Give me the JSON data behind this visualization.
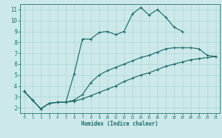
{
  "xlabel": "Humidex (Indice chaleur)",
  "xlim": [
    -0.5,
    23.5
  ],
  "ylim": [
    1.5,
    11.5
  ],
  "xticks": [
    0,
    1,
    2,
    3,
    4,
    5,
    6,
    7,
    8,
    9,
    10,
    11,
    12,
    13,
    14,
    15,
    16,
    17,
    18,
    19,
    20,
    21,
    22,
    23
  ],
  "yticks": [
    2,
    3,
    4,
    5,
    6,
    7,
    8,
    9,
    10,
    11
  ],
  "bg_color": "#cce8e8",
  "line_color": "#1a6b6b",
  "grid_color": "#aad4d4",
  "line1_x": [
    0,
    1,
    2,
    3,
    4,
    5,
    6,
    7,
    8,
    9,
    10,
    11,
    12,
    13,
    14,
    15,
    16,
    17,
    18,
    19
  ],
  "line1_y": [
    3.5,
    2.7,
    1.9,
    2.4,
    2.5,
    2.5,
    5.1,
    8.3,
    8.3,
    8.9,
    9.0,
    8.7,
    9.0,
    10.6,
    11.2,
    10.5,
    11.0,
    10.3,
    9.4,
    9.0
  ],
  "line2_x": [
    0,
    1,
    2,
    3,
    4,
    5,
    6,
    7,
    8,
    9,
    10,
    11,
    12,
    13,
    14,
    15,
    16,
    17,
    18,
    19,
    20,
    21,
    22,
    23
  ],
  "line2_y": [
    3.5,
    2.7,
    1.9,
    2.4,
    2.5,
    2.5,
    2.7,
    3.2,
    4.3,
    5.0,
    5.4,
    5.7,
    6.0,
    6.3,
    6.6,
    6.8,
    7.1,
    7.4,
    7.5,
    7.5,
    7.5,
    7.4,
    6.8,
    6.7
  ],
  "line3_x": [
    0,
    1,
    2,
    3,
    4,
    5,
    6,
    7,
    8,
    9,
    10,
    11,
    12,
    13,
    14,
    15,
    16,
    17,
    18,
    19,
    20,
    21,
    22,
    23
  ],
  "line3_y": [
    3.5,
    2.7,
    1.9,
    2.4,
    2.5,
    2.5,
    2.6,
    2.8,
    3.1,
    3.4,
    3.7,
    4.0,
    4.4,
    4.7,
    5.0,
    5.2,
    5.5,
    5.8,
    6.0,
    6.2,
    6.4,
    6.5,
    6.6,
    6.7
  ]
}
